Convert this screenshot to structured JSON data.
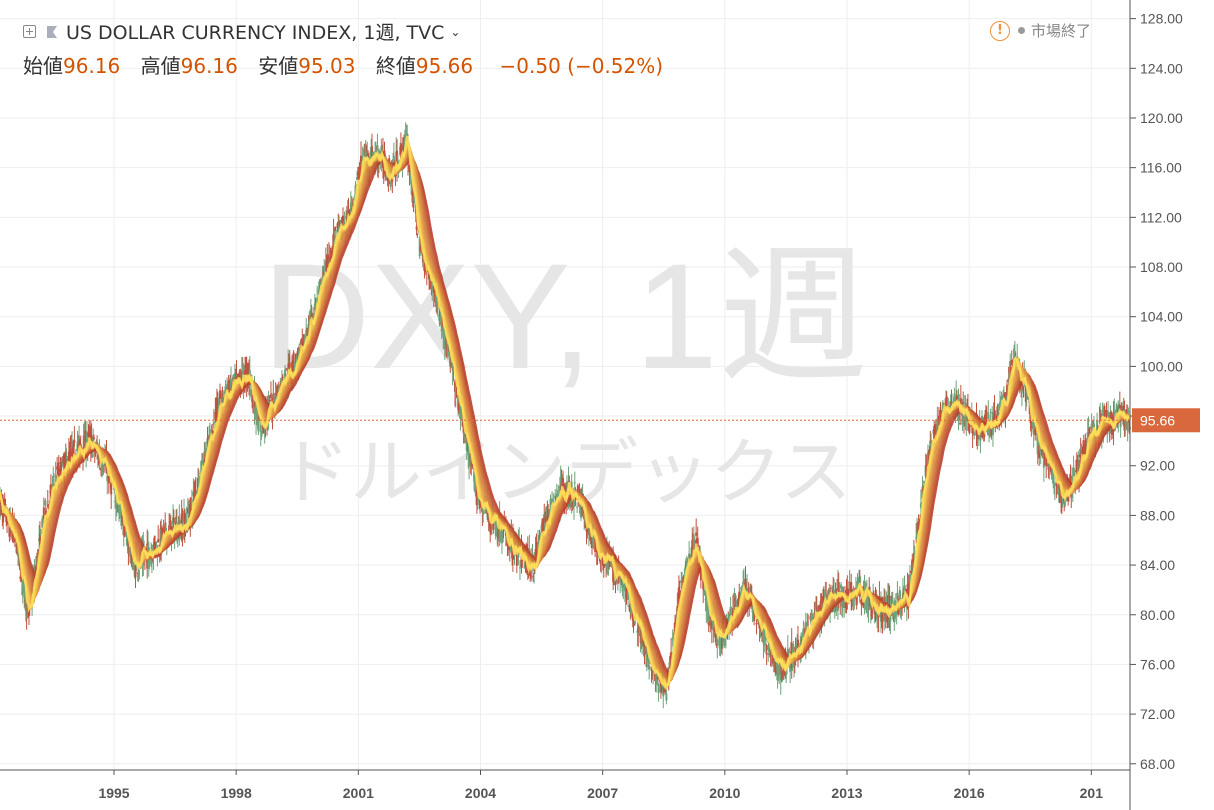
{
  "header": {
    "title": "US DOLLAR CURRENCY INDEX, 1週, TVC",
    "ohlc": {
      "open_label": "始値",
      "open": "96.16",
      "high_label": "高値",
      "high": "96.16",
      "low_label": "安値",
      "low": "95.03",
      "close_label": "終値",
      "close": "95.66",
      "change": "−0.50 (−0.52%)"
    },
    "status": "市場終了"
  },
  "watermark": {
    "symbol": "DXY, 1週",
    "name": "ドルインデックス"
  },
  "colors": {
    "up": "#6ea27a",
    "down": "#c0503e",
    "price_line": "#d9693d",
    "label_bg": "#d9693d",
    "ribbon_slow": "#b5392a",
    "ribbon_fast": "#ffe05a"
  },
  "chart_data": {
    "type": "line",
    "title": "US DOLLAR CURRENCY INDEX, 1週, TVC",
    "xlabel": "",
    "ylabel": "",
    "x_ticks": [
      "1995",
      "1998",
      "2001",
      "2004",
      "2007",
      "2010",
      "2013",
      "2016",
      "201"
    ],
    "y_ticks": [
      "68.00",
      "72.00",
      "76.00",
      "80.00",
      "84.00",
      "88.00",
      "92.00",
      "96.00",
      "100.00",
      "104.00",
      "108.00",
      "112.00",
      "116.00",
      "120.00",
      "124.00",
      "128.00"
    ],
    "x_range": [
      1992.2,
      2019.95
    ],
    "y_range": [
      67.5,
      129.5
    ],
    "last_price": 95.66,
    "last_price_label": "95.66",
    "grid": true,
    "series": [
      {
        "x": [
          1992.2,
          1992.6,
          1992.9,
          1993.3,
          1993.6,
          1994.0,
          1994.4,
          1994.8,
          1995.2,
          1995.5,
          1995.9,
          1996.3,
          1996.8,
          1997.2,
          1997.6,
          1998.0,
          1998.3,
          1998.6,
          1998.9,
          1999.2,
          1999.6,
          2000.0,
          2000.4,
          2000.8,
          2001.1,
          2001.5,
          2001.8,
          2002.2,
          2002.5,
          2002.9,
          2003.3,
          2003.6,
          2003.9,
          2004.2,
          2004.6,
          2004.9,
          2005.3,
          2005.6,
          2006.0,
          2006.4,
          2006.8,
          2007.2,
          2007.6,
          2008.0,
          2008.3,
          2008.6,
          2008.9,
          2009.3,
          2009.6,
          2009.9,
          2010.2,
          2010.5,
          2010.8,
          2011.1,
          2011.3,
          2011.6,
          2011.9,
          2012.2,
          2012.5,
          2012.9,
          2013.3,
          2013.7,
          2014.1,
          2014.5,
          2014.7,
          2015.0,
          2015.3,
          2015.6,
          2015.9,
          2016.3,
          2016.6,
          2016.9,
          2017.1,
          2017.4,
          2017.7,
          2018.0,
          2018.3,
          2018.6,
          2018.9,
          2019.3,
          2019.7,
          2019.95
        ],
        "values": [
          89.0,
          86.0,
          80.0,
          88.0,
          91.0,
          93.0,
          94.0,
          92.0,
          88.0,
          84.0,
          85.0,
          86.5,
          87.5,
          92.0,
          97.0,
          98.5,
          99.5,
          95.0,
          97.0,
          99.0,
          101.0,
          105.0,
          110.0,
          112.0,
          116.5,
          117.0,
          115.5,
          118.0,
          110.0,
          106.0,
          100.0,
          95.0,
          90.0,
          88.0,
          86.5,
          85.0,
          84.0,
          87.5,
          90.0,
          89.5,
          86.0,
          84.0,
          82.0,
          78.0,
          75.0,
          74.0,
          82.0,
          86.0,
          80.0,
          78.0,
          80.0,
          82.0,
          80.0,
          77.5,
          75.5,
          76.5,
          78.0,
          79.5,
          81.0,
          81.5,
          82.0,
          80.5,
          80.5,
          81.5,
          86.0,
          92.5,
          96.0,
          97.0,
          96.0,
          95.0,
          95.5,
          97.0,
          100.5,
          98.0,
          93.5,
          92.0,
          89.5,
          91.0,
          94.0,
          95.5,
          96.0,
          95.66
        ]
      }
    ]
  }
}
